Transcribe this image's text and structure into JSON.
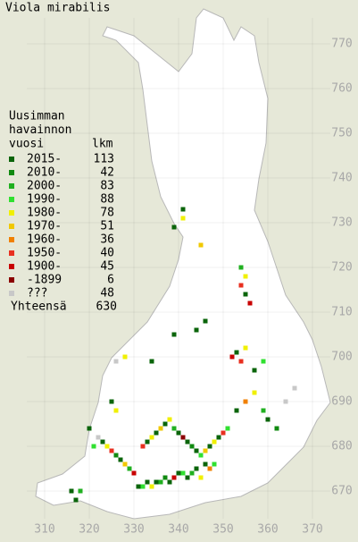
{
  "title": "Viola mirabilis",
  "legend": {
    "heading": [
      "Uusimman",
      "havainnon",
      "vuosi"
    ],
    "count_heading": "lkm",
    "entries": [
      {
        "label": "2015-",
        "count": 113,
        "color": "#0a640a",
        "cells": [
          [
            331,
            671
          ],
          [
            333,
            672
          ],
          [
            335,
            672
          ],
          [
            338,
            672
          ],
          [
            340,
            674
          ],
          [
            342,
            673
          ],
          [
            344,
            675
          ],
          [
            346,
            676
          ],
          [
            327,
            677
          ],
          [
            323,
            681
          ],
          [
            320,
            684
          ],
          [
            333,
            681
          ],
          [
            335,
            683
          ],
          [
            337,
            685
          ],
          [
            340,
            683
          ],
          [
            342,
            681
          ],
          [
            344,
            679
          ],
          [
            347,
            680
          ],
          [
            349,
            682
          ],
          [
            353,
            688
          ],
          [
            360,
            686
          ],
          [
            353,
            701
          ],
          [
            357,
            697
          ],
          [
            355,
            714
          ],
          [
            341,
            733
          ],
          [
            339,
            729
          ],
          [
            316,
            670
          ],
          [
            317,
            668
          ],
          [
            334,
            699
          ],
          [
            339,
            705
          ],
          [
            344,
            706
          ],
          [
            346,
            708
          ],
          [
            325,
            690
          ]
        ]
      },
      {
        "label": "2010-",
        "count": 42,
        "color": "#108a10",
        "cells": [
          [
            337,
            673
          ],
          [
            326,
            678
          ],
          [
            343,
            680
          ],
          [
            362,
            684
          ]
        ]
      },
      {
        "label": "2000-",
        "count": 83,
        "color": "#20b020",
        "cells": [
          [
            336,
            672
          ],
          [
            343,
            674
          ],
          [
            329,
            675
          ],
          [
            339,
            684
          ],
          [
            359,
            688
          ],
          [
            354,
            720
          ],
          [
            318,
            670
          ]
        ]
      },
      {
        "label": "1990-",
        "count": 88,
        "color": "#30e030",
        "cells": [
          [
            332,
            671
          ],
          [
            341,
            674
          ],
          [
            348,
            676
          ],
          [
            321,
            680
          ],
          [
            345,
            678
          ],
          [
            351,
            684
          ],
          [
            359,
            699
          ]
        ]
      },
      {
        "label": "1980-",
        "count": 78,
        "color": "#f0f000",
        "cells": [
          [
            334,
            671
          ],
          [
            345,
            673
          ],
          [
            324,
            680
          ],
          [
            334,
            682
          ],
          [
            338,
            686
          ],
          [
            348,
            681
          ],
          [
            357,
            692
          ],
          [
            355,
            702
          ],
          [
            355,
            718
          ],
          [
            341,
            731
          ],
          [
            328,
            700
          ],
          [
            326,
            688
          ]
        ]
      },
      {
        "label": "1970-",
        "count": 51,
        "color": "#f0c800",
        "cells": [
          [
            328,
            676
          ],
          [
            336,
            684
          ],
          [
            346,
            679
          ],
          [
            345,
            725
          ]
        ]
      },
      {
        "label": "1960-",
        "count": 36,
        "color": "#f08000",
        "cells": [
          [
            347,
            675
          ],
          [
            355,
            690
          ]
        ]
      },
      {
        "label": "1950-",
        "count": 40,
        "color": "#e83020",
        "cells": [
          [
            325,
            679
          ],
          [
            332,
            680
          ],
          [
            350,
            683
          ],
          [
            354,
            699
          ],
          [
            354,
            716
          ]
        ]
      },
      {
        "label": "1900-",
        "count": 45,
        "color": "#c80000",
        "cells": [
          [
            339,
            673
          ],
          [
            330,
            674
          ],
          [
            352,
            700
          ],
          [
            356,
            712
          ]
        ]
      },
      {
        "label": "-1899",
        "count": 6,
        "color": "#8b0000",
        "cells": [
          [
            341,
            682
          ]
        ]
      },
      {
        "label": "???",
        "count": 48,
        "color": "#c8c8c8",
        "cells": [
          [
            322,
            682
          ],
          [
            364,
            690
          ],
          [
            366,
            693
          ],
          [
            326,
            699
          ]
        ]
      }
    ],
    "total_label": "Yhteensä",
    "total": 630
  },
  "axes": {
    "xticks": [
      310,
      320,
      330,
      340,
      350,
      360,
      370
    ],
    "yticks": [
      670,
      680,
      690,
      700,
      710,
      720,
      730,
      740,
      750,
      760,
      770
    ]
  }
}
